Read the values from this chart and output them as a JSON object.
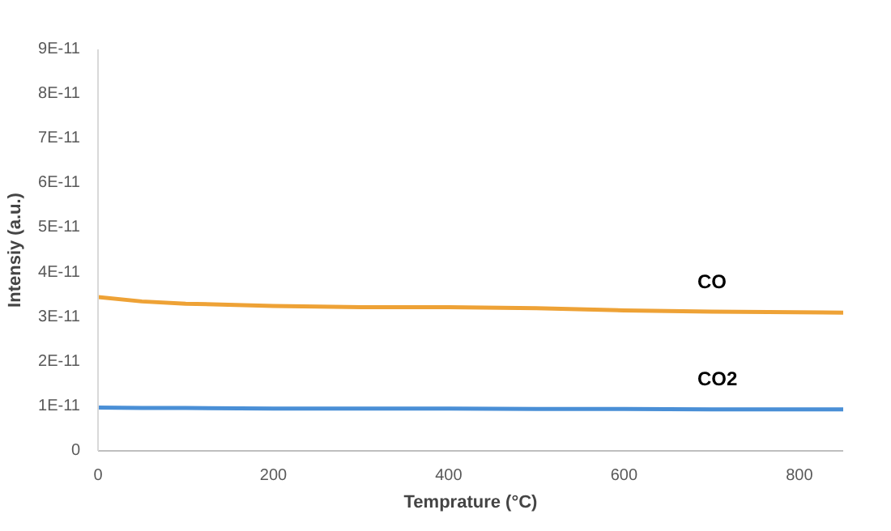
{
  "chart_data": {
    "type": "line",
    "xlabel": "Temprature (°C)",
    "ylabel": "Intensiy (a.u.)",
    "x": [
      0,
      50,
      100,
      200,
      300,
      400,
      500,
      600,
      700,
      850
    ],
    "series": [
      {
        "name": "CO",
        "color": "#eea236",
        "values": [
          3.45e-11,
          3.35e-11,
          3.3e-11,
          3.25e-11,
          3.22e-11,
          3.22e-11,
          3.2e-11,
          3.15e-11,
          3.12e-11,
          3.1e-11
        ]
      },
      {
        "name": "CO2",
        "color": "#4a8fd6",
        "values": [
          9.7e-12,
          9.6e-12,
          9.6e-12,
          9.5e-12,
          9.5e-12,
          9.5e-12,
          9.4e-12,
          9.4e-12,
          9.3e-12,
          9.3e-12
        ]
      }
    ],
    "xlim": [
      0,
      850
    ],
    "xticks": [
      0,
      200,
      400,
      600,
      800
    ],
    "ylim": [
      0,
      9e-11
    ],
    "yticks": [
      0,
      {
        "value": 1e-11,
        "label": "1E-11"
      },
      {
        "value": 2e-11,
        "label": "2E-11"
      },
      {
        "value": 3e-11,
        "label": "3E-11"
      },
      {
        "value": 4e-11,
        "label": "4E-11"
      },
      {
        "value": 5e-11,
        "label": "5E-11"
      },
      {
        "value": 6e-11,
        "label": "6E-11"
      },
      {
        "value": 7e-11,
        "label": "7E-11"
      },
      {
        "value": 8e-11,
        "label": "8E-11"
      },
      {
        "value": 9e-11,
        "label": "9E-11"
      }
    ],
    "grid": false,
    "legend": false,
    "marker": "none",
    "line_style": "solid"
  }
}
